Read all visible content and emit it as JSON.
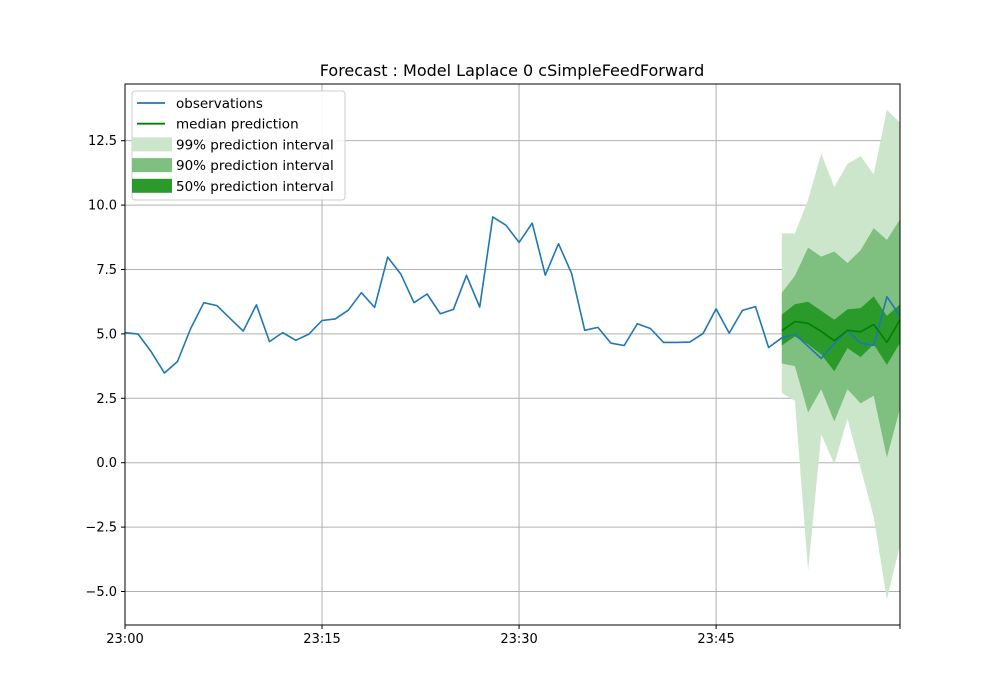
{
  "chart_data": {
    "type": "line",
    "title": "Forecast : Model Laplace 0 cSimpleFeedForward",
    "xlabel": "",
    "ylabel": "",
    "x_ticks": [
      "23:00",
      "23:15",
      "23:30",
      "23:45"
    ],
    "xlim": [
      0,
      59
    ],
    "ylim": [
      -6.3,
      14.7
    ],
    "y_ticks": [
      -5.0,
      -2.5,
      0.0,
      2.5,
      5.0,
      7.5,
      10.0,
      12.5
    ],
    "grid": true,
    "legend_position": "top-left",
    "colors": {
      "observations": "#1f77b4",
      "median": "#008000",
      "interval_99": "#cce6cc",
      "interval_90": "#7fbf7f",
      "interval_50": "#2a9a2a"
    },
    "series": [
      {
        "name": "observations",
        "x": [
          0,
          1,
          2,
          3,
          4,
          5,
          6,
          7,
          8,
          9,
          10,
          11,
          12,
          13,
          14,
          15,
          16,
          17,
          18,
          19,
          20,
          21,
          22,
          23,
          24,
          25,
          26,
          27,
          28,
          29,
          30,
          31,
          32,
          33,
          34,
          35,
          36,
          37,
          38,
          39,
          40,
          41,
          42,
          43,
          44,
          45,
          46,
          47,
          48,
          49,
          50,
          51,
          52,
          53,
          54,
          55,
          56,
          57,
          58,
          59
        ],
        "values": [
          5.05,
          4.99,
          4.3,
          3.48,
          3.93,
          5.21,
          6.21,
          6.1,
          5.6,
          5.11,
          6.13,
          4.7,
          5.05,
          4.75,
          4.99,
          5.52,
          5.58,
          5.92,
          6.6,
          6.03,
          7.98,
          7.32,
          6.21,
          6.55,
          5.78,
          5.95,
          7.27,
          6.04,
          9.54,
          9.22,
          8.55,
          9.3,
          7.28,
          8.5,
          7.35,
          5.14,
          5.25,
          4.64,
          4.55,
          5.39,
          5.21,
          4.67,
          4.67,
          4.68,
          5.01,
          5.97,
          5.03,
          5.91,
          6.06,
          4.47,
          4.85,
          4.99,
          4.52,
          4.05,
          4.63,
          5.14,
          4.64,
          4.55,
          6.44,
          5.7
        ]
      },
      {
        "name": "median prediction",
        "x": [
          50,
          51,
          52,
          53,
          54,
          55,
          56,
          57,
          58,
          59
        ],
        "values": [
          5.12,
          5.48,
          5.41,
          5.1,
          4.73,
          5.14,
          5.08,
          5.37,
          4.67,
          5.55
        ]
      }
    ],
    "intervals": [
      {
        "name": "99% prediction interval",
        "x": [
          50,
          51,
          52,
          53,
          54,
          55,
          56,
          57,
          58,
          59
        ],
        "lower": [
          2.7,
          2.4,
          -4.2,
          1.1,
          -0.05,
          1.7,
          -0.2,
          -2.1,
          -5.3,
          -3.2
        ],
        "upper": [
          8.9,
          8.9,
          10.2,
          12.0,
          10.7,
          11.6,
          11.9,
          11.2,
          13.7,
          13.2
        ]
      },
      {
        "name": "90% prediction interval",
        "x": [
          50,
          51,
          52,
          53,
          54,
          55,
          56,
          57,
          58,
          59
        ],
        "lower": [
          3.85,
          3.75,
          1.95,
          2.85,
          1.6,
          2.85,
          2.3,
          2.6,
          0.2,
          2.1
        ],
        "upper": [
          6.6,
          7.25,
          8.35,
          8.0,
          8.2,
          7.75,
          8.25,
          9.1,
          8.65,
          9.45
        ]
      },
      {
        "name": "50% prediction interval",
        "x": [
          50,
          51,
          52,
          53,
          54,
          55,
          56,
          57,
          58,
          59
        ],
        "lower": [
          4.55,
          4.9,
          4.6,
          4.2,
          3.55,
          4.45,
          4.1,
          4.6,
          3.8,
          4.65
        ],
        "upper": [
          5.75,
          6.15,
          6.25,
          5.9,
          5.55,
          5.95,
          6.0,
          6.45,
          5.7,
          6.15
        ]
      }
    ]
  }
}
